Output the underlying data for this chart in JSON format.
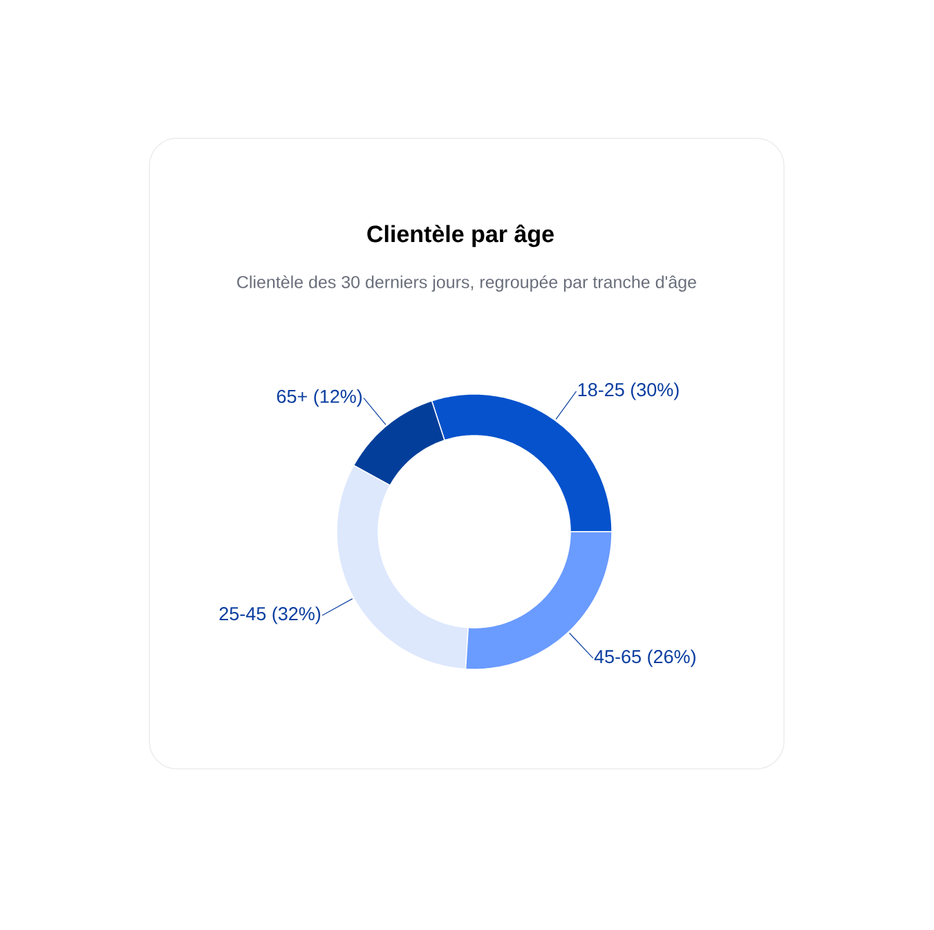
{
  "chart_data": {
    "type": "donut",
    "title": "Clientèle par âge",
    "subtitle": "Clientèle des 30 derniers jours, regroupée par tranche d'âge",
    "categories": [
      "18-25 (30%)",
      "65+ (12%)",
      "25-45 (32%)",
      "45-65 (26%)"
    ],
    "values": [
      30,
      12,
      32,
      26
    ],
    "colors": [
      "#0552cc",
      "#033f9a",
      "#dde8fd",
      "#6a9bff"
    ]
  }
}
